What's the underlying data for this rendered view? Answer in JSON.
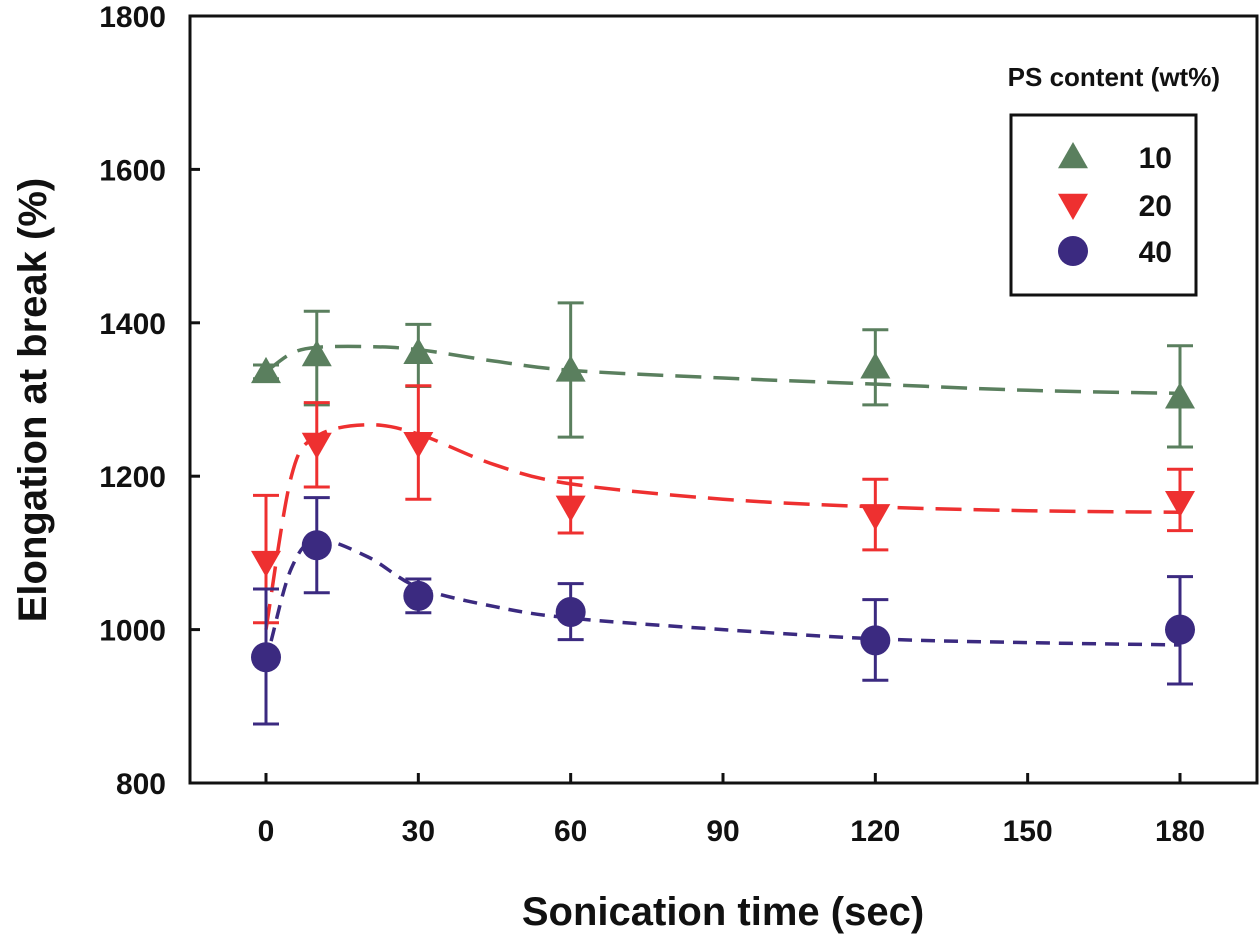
{
  "chart_data": {
    "type": "line",
    "title": "",
    "xlabel": "Sonication time (sec)",
    "ylabel": "Elongation at break (%)",
    "xlim": [
      -15,
      190
    ],
    "ylim": [
      800,
      1800
    ],
    "xticks": [
      0,
      30,
      60,
      90,
      120,
      150,
      180
    ],
    "yticks": [
      800,
      1000,
      1200,
      1400,
      1600,
      1800
    ],
    "grid": false,
    "legend": {
      "title": "PS content (wt%)",
      "position": "top-right"
    },
    "x": [
      0,
      10,
      30,
      60,
      120,
      180
    ],
    "series": [
      {
        "name": "10",
        "marker": "triangle-up",
        "color": "#5a7f5e",
        "values": [
          1336,
          1358,
          1361,
          1338,
          1342,
          1303
        ],
        "err_upper": [
          1345,
          1415,
          1398,
          1426,
          1391,
          1370
        ],
        "err_lower": [
          1327,
          1293,
          1317,
          1251,
          1293,
          1238
        ],
        "fit": [
          [
            0,
            1336
          ],
          [
            5,
            1360
          ],
          [
            10,
            1368
          ],
          [
            20,
            1369
          ],
          [
            30,
            1365
          ],
          [
            45,
            1350
          ],
          [
            60,
            1338
          ],
          [
            90,
            1328
          ],
          [
            120,
            1320
          ],
          [
            150,
            1312
          ],
          [
            180,
            1308
          ]
        ]
      },
      {
        "name": "20",
        "marker": "triangle-down",
        "color": "#ee3030",
        "values": [
          1088,
          1242,
          1243,
          1160,
          1149,
          1166
        ],
        "err_upper": [
          1175,
          1296,
          1318,
          1198,
          1196,
          1209
        ],
        "err_lower": [
          1009,
          1186,
          1170,
          1126,
          1104,
          1129
        ],
        "fit": [
          [
            0,
            1000
          ],
          [
            5,
            1200
          ],
          [
            10,
            1252
          ],
          [
            20,
            1267
          ],
          [
            30,
            1255
          ],
          [
            45,
            1215
          ],
          [
            60,
            1190
          ],
          [
            90,
            1170
          ],
          [
            120,
            1160
          ],
          [
            150,
            1155
          ],
          [
            180,
            1153
          ]
        ]
      },
      {
        "name": "40",
        "marker": "circle",
        "color": "#3b2a80",
        "values": [
          964,
          1110,
          1044,
          1023,
          986,
          1000
        ],
        "err_upper": [
          1053,
          1172,
          1066,
          1060,
          1039,
          1069
        ],
        "err_lower": [
          877,
          1048,
          1022,
          987,
          934,
          929
        ],
        "fit": [
          [
            1,
            985
          ],
          [
            5,
            1080
          ],
          [
            10,
            1117
          ],
          [
            20,
            1095
          ],
          [
            30,
            1055
          ],
          [
            45,
            1030
          ],
          [
            60,
            1015
          ],
          [
            90,
            1000
          ],
          [
            120,
            988
          ],
          [
            150,
            983
          ],
          [
            180,
            980
          ]
        ]
      }
    ]
  }
}
